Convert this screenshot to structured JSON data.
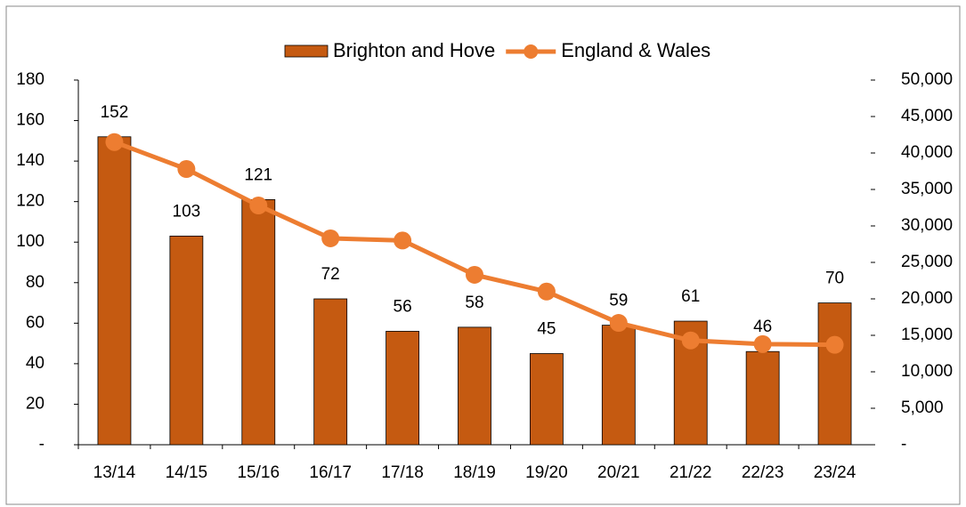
{
  "chart_data": {
    "type": "bar",
    "categories": [
      "13/14",
      "14/15",
      "15/16",
      "16/17",
      "17/18",
      "18/19",
      "19/20",
      "20/21",
      "21/22",
      "22/23",
      "23/24"
    ],
    "series": [
      {
        "name": "Brighton and Hove",
        "type": "bar",
        "color": "#c55a11",
        "values": [
          152,
          103,
          121,
          72,
          56,
          58,
          45,
          59,
          61,
          46,
          70
        ]
      },
      {
        "name": "England & Wales",
        "type": "line",
        "axis": "y2",
        "color": "#ed7d31",
        "values": [
          41500,
          37800,
          32800,
          28300,
          28000,
          23300,
          21000,
          16700,
          14300,
          13800,
          13700
        ]
      }
    ],
    "ylim": [
      0,
      180
    ],
    "yticks": [
      {
        "value": 0,
        "label": "-"
      },
      20,
      40,
      60,
      80,
      100,
      120,
      140,
      160,
      180
    ],
    "y2lim": [
      0,
      50000
    ],
    "y2ticks": [
      {
        "value": 0,
        "label": "-"
      },
      {
        "value": 5000,
        "label": "5,000"
      },
      {
        "value": 10000,
        "label": "10,000"
      },
      {
        "value": 15000,
        "label": "15,000"
      },
      {
        "value": 20000,
        "label": "20,000"
      },
      {
        "value": 25000,
        "label": "25,000"
      },
      {
        "value": 30000,
        "label": "30,000"
      },
      {
        "value": 35000,
        "label": "35,000"
      },
      {
        "value": 40000,
        "label": "40,000"
      },
      {
        "value": 45000,
        "label": "45,000"
      },
      {
        "value": 50000,
        "label": "50,000"
      }
    ],
    "legend": "top",
    "grid": false
  }
}
